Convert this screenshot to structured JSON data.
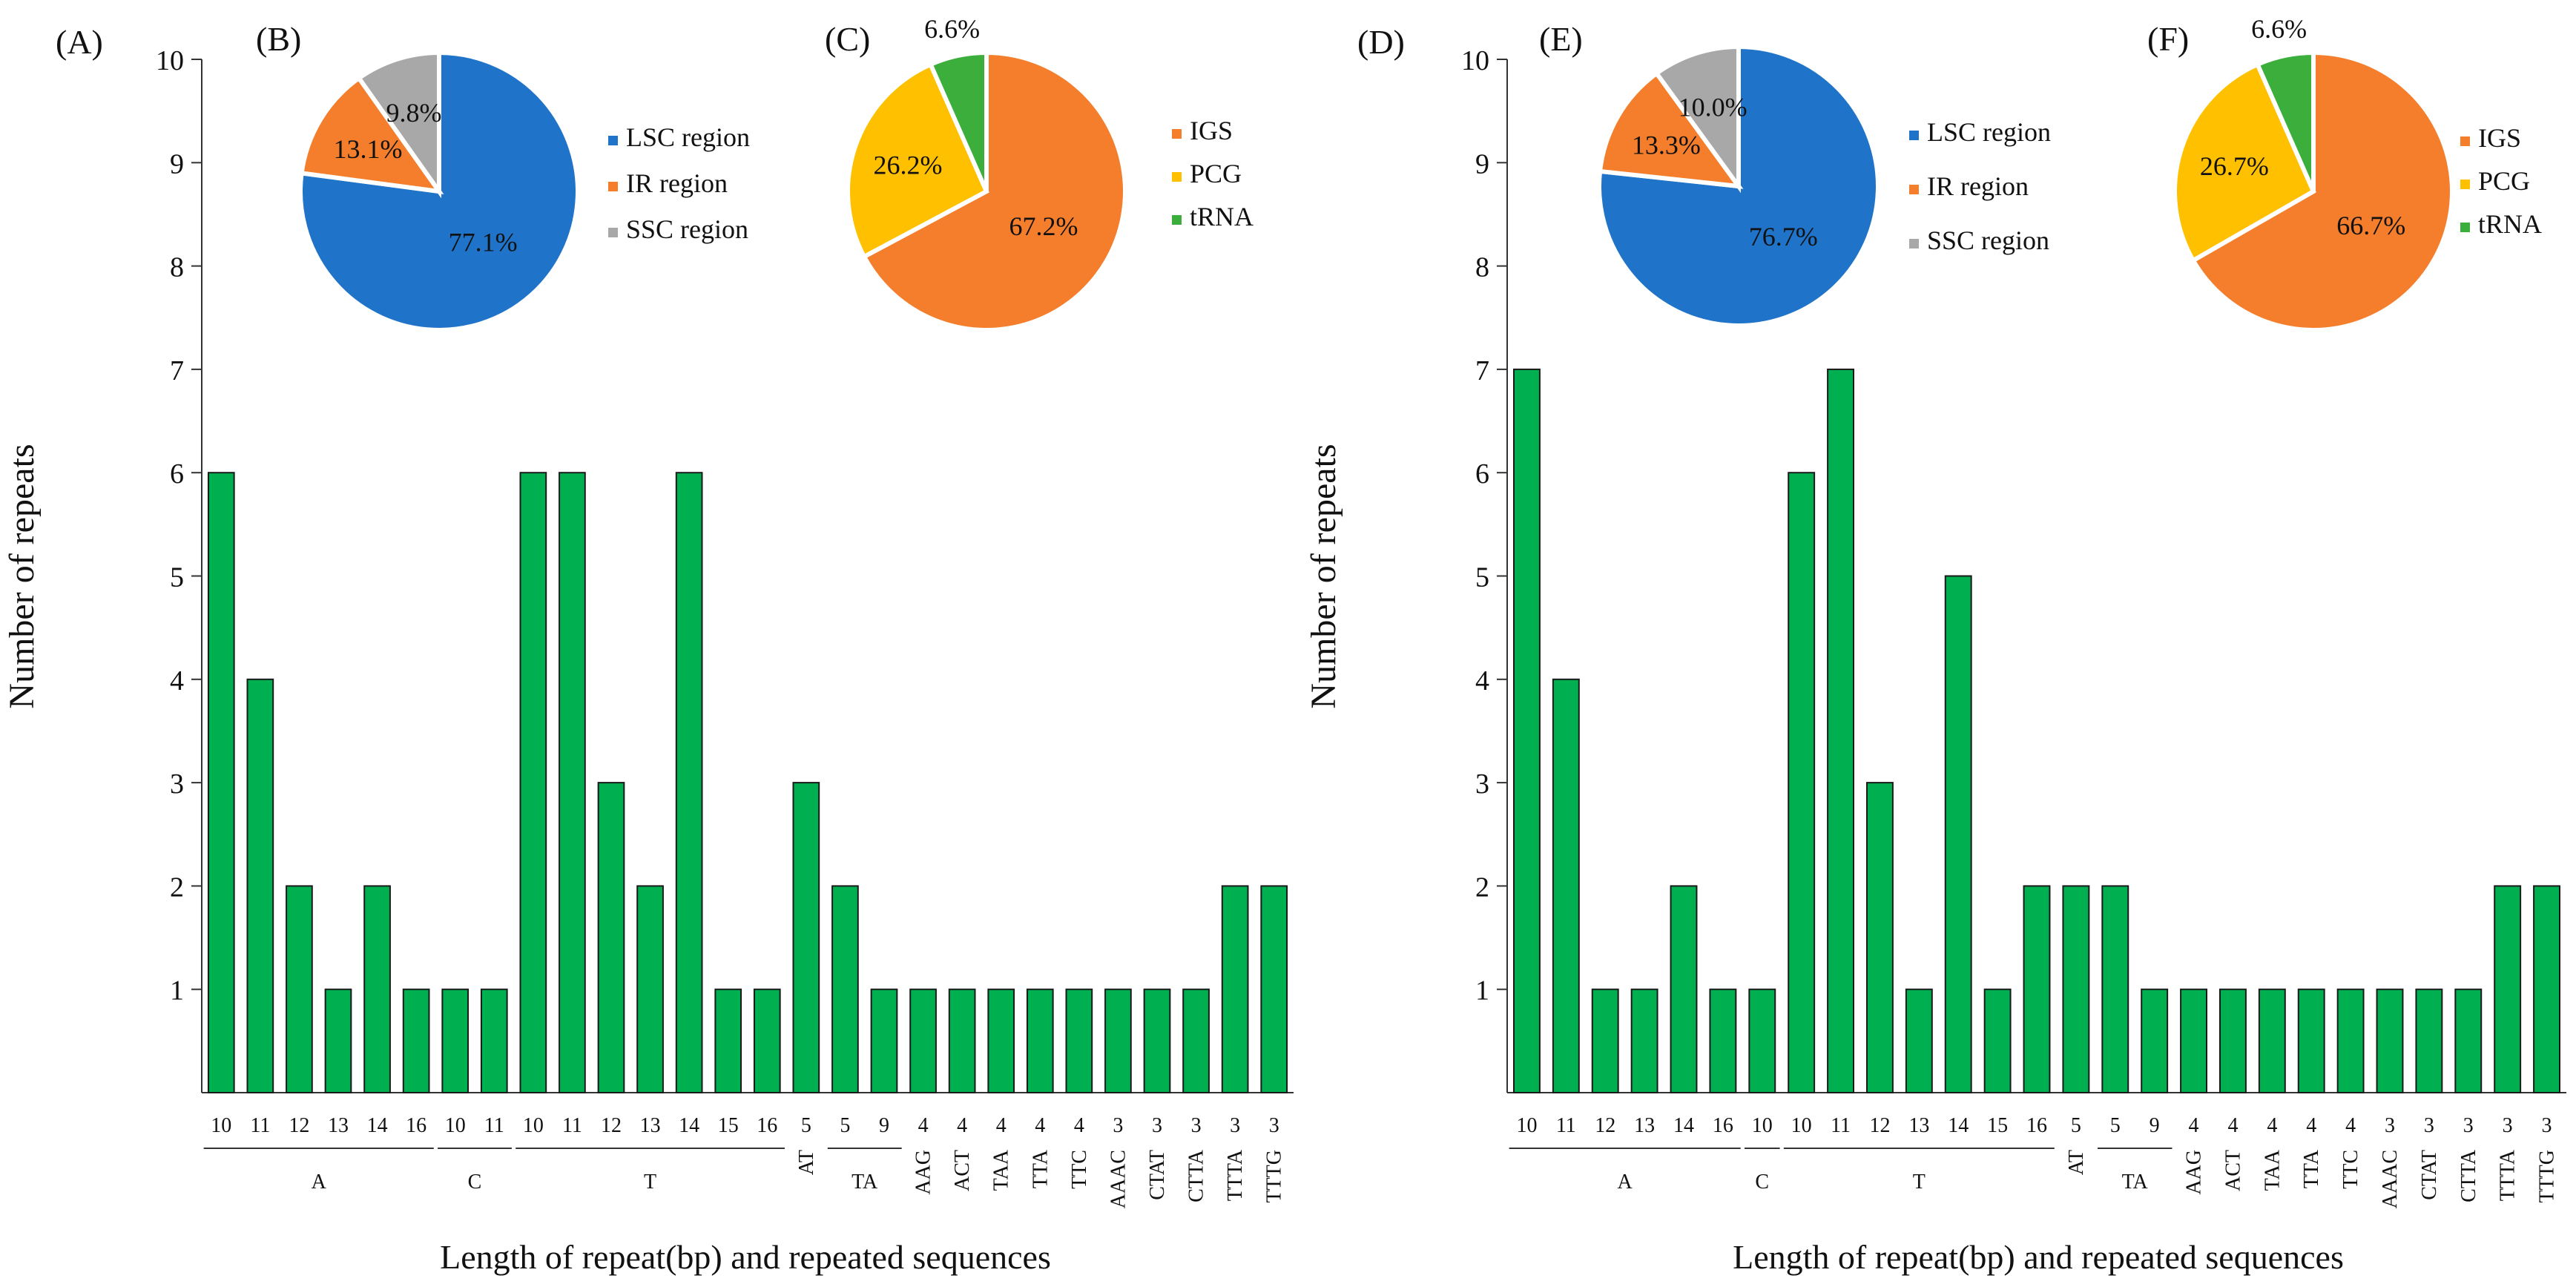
{
  "colors": {
    "bar": "#00B050",
    "bar_stroke": "#1a1a1a",
    "axis": "#333333",
    "lsc": "#1F74C9",
    "ir": "#F47E2C",
    "ssc": "#A8A8A8",
    "igs": "#F47E2C",
    "pcg": "#FFC000",
    "trna": "#3CAE3C"
  },
  "chart_data": [
    {
      "id": "A",
      "panel": "(A)",
      "type": "bar",
      "ylabel": "Number of repeats",
      "xlabel": "Length of repeat(bp) and repeated sequences",
      "ylim": [
        0,
        10
      ],
      "yticks": [
        1,
        2,
        3,
        4,
        5,
        6,
        7,
        8,
        9,
        10
      ],
      "categories": [
        "10",
        "11",
        "12",
        "13",
        "14",
        "16",
        "10",
        "11",
        "10",
        "11",
        "12",
        "13",
        "14",
        "15",
        "16",
        "5",
        "5",
        "9",
        "4",
        "4",
        "4",
        "4",
        "4",
        "3",
        "3",
        "3",
        "3",
        "3"
      ],
      "values": [
        6,
        4,
        2,
        1,
        2,
        1,
        1,
        1,
        6,
        6,
        3,
        2,
        6,
        1,
        1,
        3,
        2,
        1,
        1,
        1,
        1,
        1,
        1,
        1,
        1,
        1,
        2,
        2
      ],
      "groups": [
        {
          "label": "A",
          "start": 0,
          "end": 5,
          "underline": true
        },
        {
          "label": "C",
          "start": 6,
          "end": 7,
          "underline": true
        },
        {
          "label": "T",
          "start": 8,
          "end": 14,
          "underline": true
        },
        {
          "label": "AT",
          "start": 15,
          "end": 15,
          "underline": false
        },
        {
          "label": "TA",
          "start": 16,
          "end": 17,
          "underline": true
        },
        {
          "label": "AAG",
          "start": 18,
          "end": 18,
          "underline": false
        },
        {
          "label": "ACT",
          "start": 19,
          "end": 19,
          "underline": false
        },
        {
          "label": "TAA",
          "start": 20,
          "end": 20,
          "underline": false
        },
        {
          "label": "TTA",
          "start": 21,
          "end": 21,
          "underline": false
        },
        {
          "label": "TTC",
          "start": 22,
          "end": 22,
          "underline": false
        },
        {
          "label": "AAAC",
          "start": 23,
          "end": 23,
          "underline": false
        },
        {
          "label": "CTAT",
          "start": 24,
          "end": 24,
          "underline": false
        },
        {
          "label": "CTTA",
          "start": 25,
          "end": 25,
          "underline": false
        },
        {
          "label": "TTTA",
          "start": 26,
          "end": 26,
          "underline": false
        },
        {
          "label": "TTTG",
          "start": 27,
          "end": 27,
          "underline": false
        }
      ]
    },
    {
      "id": "D",
      "panel": "(D)",
      "type": "bar",
      "ylabel": "Number of repeats",
      "xlabel": "Length of repeat(bp) and repeated sequences",
      "ylim": [
        0,
        10
      ],
      "yticks": [
        1,
        2,
        3,
        4,
        5,
        6,
        7,
        8,
        9,
        10
      ],
      "categories": [
        "10",
        "11",
        "12",
        "13",
        "14",
        "16",
        "10",
        "10",
        "11",
        "12",
        "13",
        "14",
        "15",
        "16",
        "5",
        "5",
        "9",
        "4",
        "4",
        "4",
        "4",
        "4",
        "3",
        "3",
        "3",
        "3",
        "3"
      ],
      "values": [
        7,
        4,
        1,
        1,
        2,
        1,
        1,
        6,
        7,
        3,
        1,
        5,
        1,
        2,
        2,
        2,
        1,
        1,
        1,
        1,
        1,
        1,
        1,
        1,
        1,
        2,
        2
      ],
      "groups": [
        {
          "label": "A",
          "start": 0,
          "end": 5,
          "underline": true
        },
        {
          "label": "C",
          "start": 6,
          "end": 6,
          "underline": true
        },
        {
          "label": "T",
          "start": 7,
          "end": 13,
          "underline": true
        },
        {
          "label": "AT",
          "start": 14,
          "end": 14,
          "underline": false
        },
        {
          "label": "TA",
          "start": 15,
          "end": 16,
          "underline": true
        },
        {
          "label": "AAG",
          "start": 17,
          "end": 17,
          "underline": false
        },
        {
          "label": "ACT",
          "start": 18,
          "end": 18,
          "underline": false
        },
        {
          "label": "TAA",
          "start": 19,
          "end": 19,
          "underline": false
        },
        {
          "label": "TTA",
          "start": 20,
          "end": 20,
          "underline": false
        },
        {
          "label": "TTC",
          "start": 21,
          "end": 21,
          "underline": false
        },
        {
          "label": "AAAC",
          "start": 22,
          "end": 22,
          "underline": false
        },
        {
          "label": "CTAT",
          "start": 23,
          "end": 23,
          "underline": false
        },
        {
          "label": "CTTA",
          "start": 24,
          "end": 24,
          "underline": false
        },
        {
          "label": "TTTA",
          "start": 25,
          "end": 25,
          "underline": false
        },
        {
          "label": "TTTG",
          "start": 26,
          "end": 26,
          "underline": false
        }
      ]
    },
    {
      "id": "B",
      "panel": "(B)",
      "type": "pie",
      "slices": [
        {
          "label": "LSC region",
          "value": 77.1,
          "text": "77.1%",
          "color_key": "lsc"
        },
        {
          "label": "IR region",
          "value": 13.1,
          "text": "13.1%",
          "color_key": "ir"
        },
        {
          "label": "SSC region",
          "value": 9.8,
          "text": "9.8%",
          "color_key": "ssc"
        }
      ]
    },
    {
      "id": "C",
      "panel": "(C)",
      "type": "pie",
      "slices": [
        {
          "label": "IGS",
          "value": 67.2,
          "text": "67.2%",
          "color_key": "igs"
        },
        {
          "label": "PCG",
          "value": 26.2,
          "text": "26.2%",
          "color_key": "pcg"
        },
        {
          "label": "tRNA",
          "value": 6.6,
          "text": "6.6%",
          "color_key": "trna"
        }
      ]
    },
    {
      "id": "E",
      "panel": "(E)",
      "type": "pie",
      "slices": [
        {
          "label": "LSC region",
          "value": 76.7,
          "text": "76.7%",
          "color_key": "lsc"
        },
        {
          "label": "IR region",
          "value": 13.3,
          "text": "13.3%",
          "color_key": "ir"
        },
        {
          "label": "SSC region",
          "value": 10.0,
          "text": "10.0%",
          "color_key": "ssc"
        }
      ]
    },
    {
      "id": "F",
      "panel": "(F)",
      "type": "pie",
      "slices": [
        {
          "label": "IGS",
          "value": 66.7,
          "text": "66.7%",
          "color_key": "igs"
        },
        {
          "label": "PCG",
          "value": 26.7,
          "text": "26.7%",
          "color_key": "pcg"
        },
        {
          "label": "tRNA",
          "value": 6.6,
          "text": "6.6%",
          "color_key": "trna"
        }
      ]
    }
  ]
}
